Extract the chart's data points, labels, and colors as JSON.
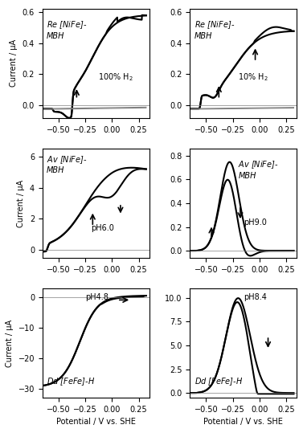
{
  "title": "",
  "nrows": 3,
  "ncols": 2,
  "xlim": [
    -0.65,
    0.35
  ],
  "xlabel": "Potential / V vs. SHE",
  "subplots": [
    {
      "label": "Re [NiFe]-\nMBH",
      "annotation": "100% H$_2$",
      "ylabel": "Current / μA",
      "ylim": [
        -0.08,
        0.62
      ],
      "yticks": [
        0.0,
        0.2,
        0.4,
        0.6
      ],
      "show_xlabel": false,
      "italic_label": true
    },
    {
      "label": "Re [NiFe]-\nMBH",
      "annotation": "10% H$_2$",
      "ylabel": "",
      "ylim": [
        -0.08,
        0.62
      ],
      "yticks": [
        0.0,
        0.2,
        0.4,
        0.6
      ],
      "show_xlabel": false,
      "italic_label": true
    },
    {
      "label": "Av [NiFe]-\nMBH",
      "annotation": "pH6.0",
      "ylabel": "Current / μA",
      "ylim": [
        -0.5,
        6.5
      ],
      "yticks": [
        0,
        2,
        4,
        6
      ],
      "show_xlabel": false,
      "italic_label": true
    },
    {
      "label": "Av [NiFe]-\nMBH",
      "annotation": "pH9.0",
      "ylabel": "",
      "ylim": [
        -0.06,
        0.86
      ],
      "yticks": [
        0.0,
        0.2,
        0.4,
        0.6,
        0.8
      ],
      "show_xlabel": false,
      "italic_label": true
    },
    {
      "label": "Dd [FeFe]-H",
      "annotation": "pH4.8",
      "ylabel": "Current / μA",
      "ylim": [
        -33,
        3
      ],
      "yticks": [
        0,
        -10,
        -20,
        -30
      ],
      "show_xlabel": true,
      "italic_label": true
    },
    {
      "label": "Dd [FeFe]-H",
      "annotation": "pH8.4",
      "ylabel": "",
      "ylim": [
        -0.5,
        11
      ],
      "yticks": [
        0.0,
        2.5,
        5.0,
        7.5,
        10.0
      ],
      "show_xlabel": true,
      "italic_label": true
    }
  ]
}
